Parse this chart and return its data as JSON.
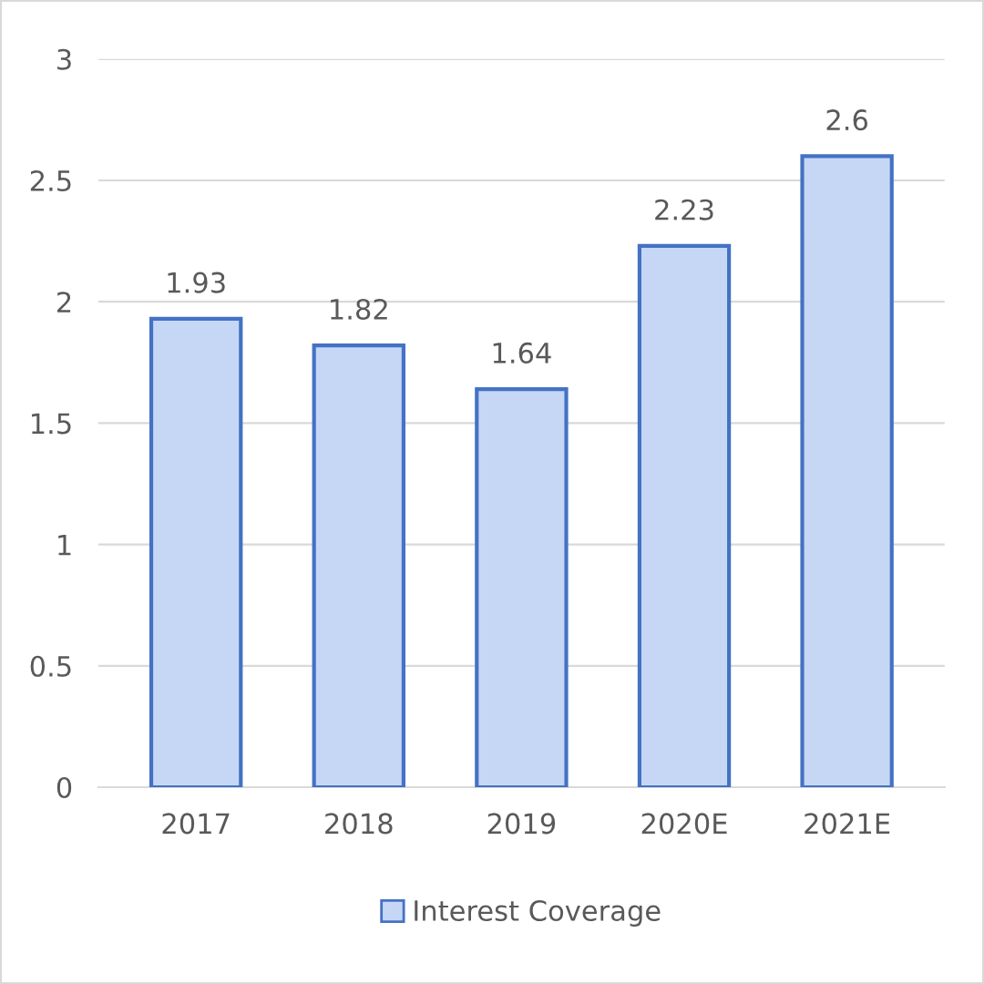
{
  "chart_data": {
    "type": "bar",
    "categories": [
      "2017",
      "2018",
      "2019",
      "2020E",
      "2021E"
    ],
    "series": [
      {
        "name": "Interest Coverage",
        "color": "#c6d7f6",
        "values": [
          1.93,
          1.82,
          1.64,
          2.23,
          2.6
        ]
      }
    ],
    "ylim": [
      0,
      3
    ],
    "yticks": [
      0,
      0.5,
      1,
      1.5,
      2,
      2.5,
      3
    ],
    "grid": "y",
    "legend": "bottom",
    "data_labels": true
  }
}
